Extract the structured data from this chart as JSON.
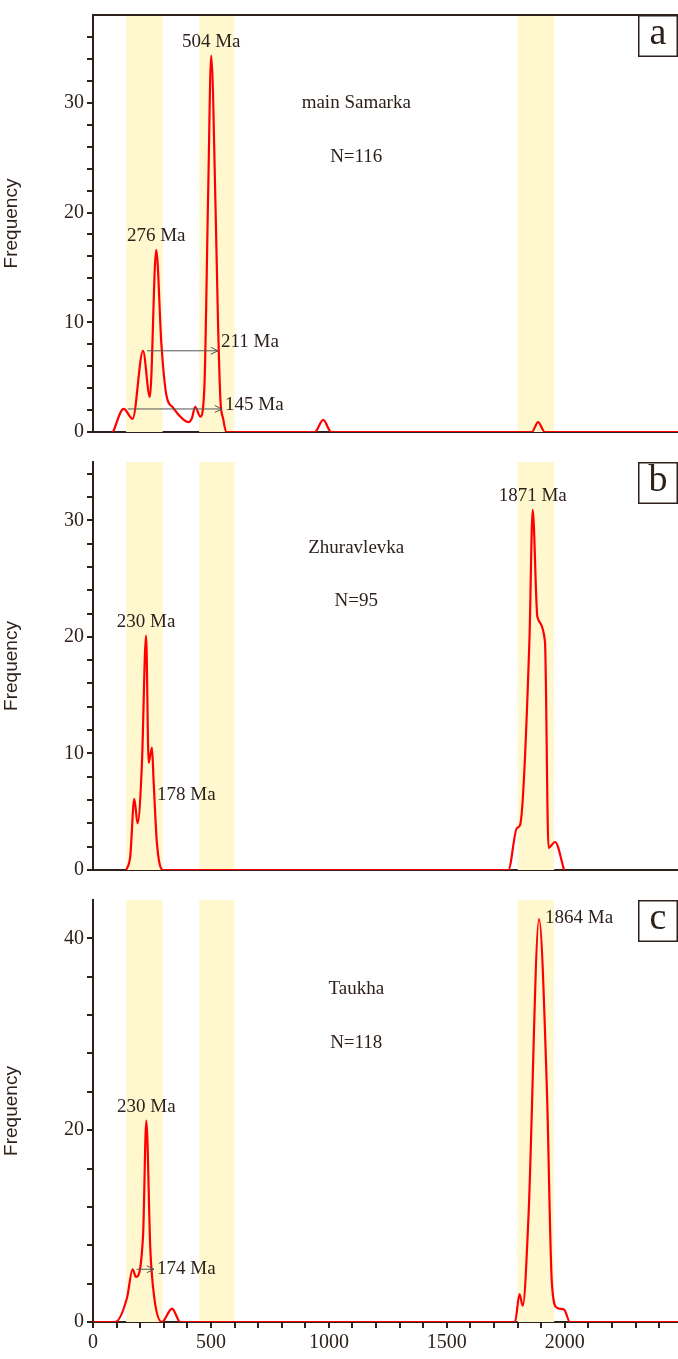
{
  "chart_data": [
    {
      "type": "line",
      "title": "main Samarka",
      "subtitle": "N=116",
      "ylabel": "Frequency",
      "tick_labels": "y",
      "x": [
        85,
        130,
        168,
        212,
        241,
        268,
        290,
        310,
        340,
        380,
        405,
        420,
        433,
        455,
        472,
        488,
        501,
        520,
        530,
        540,
        552,
        565,
        940,
        976,
        1010,
        1860,
        1887,
        1915,
        2480
      ],
      "values": [
        0,
        2.1,
        1.2,
        7.4,
        3.2,
        16.6,
        8,
        3.5,
        2.2,
        1.2,
        0.9,
        1.3,
        2.3,
        1.4,
        4,
        21.5,
        34.3,
        20,
        10,
        3,
        1.2,
        0,
        0,
        1.1,
        0,
        0,
        0.9,
        0,
        0
      ],
      "color": "#ff0000",
      "xlim": [
        0,
        2480
      ],
      "ylim": [
        0,
        38
      ],
      "yticks": [
        0,
        {
          "value": 2,
          "label": null
        },
        {
          "value": 4,
          "label": null
        },
        {
          "value": 6,
          "label": null
        },
        {
          "value": 8,
          "label": null
        },
        10,
        {
          "value": 12,
          "label": null
        },
        {
          "value": 14,
          "label": null
        },
        {
          "value": 16,
          "label": null
        },
        {
          "value": 18,
          "label": null
        },
        20,
        {
          "value": 22,
          "label": null
        },
        {
          "value": 24,
          "label": null
        },
        {
          "value": 26,
          "label": null
        },
        {
          "value": 28,
          "label": null
        },
        30,
        {
          "value": 32,
          "label": null
        },
        {
          "value": 34,
          "label": null
        },
        {
          "value": 36,
          "label": null
        }
      ],
      "bands": [
        {
          "axis": "x",
          "from": 140,
          "to": 295,
          "color": "#fff8cf"
        },
        {
          "axis": "x",
          "from": 450,
          "to": 600,
          "color": "#fff8cf"
        },
        {
          "axis": "x",
          "from": 1800,
          "to": 1955,
          "color": "#fff8cf"
        }
      ],
      "annotations": [
        {
          "text": "504 Ma",
          "x": 501,
          "y": 34.3
        },
        {
          "text": "276 Ma",
          "x": 268,
          "y": 16.6
        },
        {
          "text": "211 Ma",
          "x": 212,
          "y": 7.4
        },
        {
          "text": "145 Ma",
          "x": 130,
          "y": 2.1
        },
        "a"
      ]
    },
    {
      "type": "line",
      "title": "Zhuravlevka",
      "subtitle": "N=95",
      "ylabel": "Frequency",
      "tick_labels": "y",
      "x": [
        141,
        158,
        175,
        189,
        207,
        225,
        236,
        250,
        257,
        271,
        297,
        1761,
        1797,
        1811,
        1850,
        1864,
        1884,
        1916,
        1931,
        1959,
        1997
      ],
      "values": [
        0,
        1.2,
        6.1,
        4.0,
        8.9,
        20.1,
        9.2,
        10.5,
        7.6,
        2.3,
        0,
        0,
        3.6,
        3.9,
        19.6,
        30.9,
        21.7,
        19.6,
        1.9,
        2.4,
        0
      ],
      "color": "#ff0000",
      "xlim": [
        0,
        2480
      ],
      "ylim": [
        0,
        35
      ],
      "yticks": [
        0,
        {
          "value": 2,
          "label": null
        },
        {
          "value": 4,
          "label": null
        },
        {
          "value": 6,
          "label": null
        },
        {
          "value": 8,
          "label": null
        },
        10,
        {
          "value": 12,
          "label": null
        },
        {
          "value": 14,
          "label": null
        },
        {
          "value": 16,
          "label": null
        },
        {
          "value": 18,
          "label": null
        },
        20,
        {
          "value": 22,
          "label": null
        },
        {
          "value": 24,
          "label": null
        },
        {
          "value": 26,
          "label": null
        },
        {
          "value": 28,
          "label": null
        },
        30,
        {
          "value": 32,
          "label": null
        },
        {
          "value": 34,
          "label": null
        }
      ],
      "bands": [
        {
          "axis": "x",
          "from": 140,
          "to": 295,
          "color": "#fff8cf"
        },
        {
          "axis": "x",
          "from": 450,
          "to": 600,
          "color": "#fff8cf"
        },
        {
          "axis": "x",
          "from": 1800,
          "to": 1955,
          "color": "#fff8cf"
        }
      ],
      "annotations": [
        {
          "text": "1871 Ma",
          "x": 1864,
          "y": 30.9
        },
        {
          "text": "230 Ma",
          "x": 225,
          "y": 20.1
        },
        {
          "text": "178 Ma",
          "x": 175,
          "y": 6.1
        },
        "b"
      ]
    },
    {
      "type": "line",
      "title": "Taukha",
      "subtitle": "N=118",
      "ylabel": "Frequency",
      "x": [
        0,
        94,
        144,
        168,
        182,
        212,
        226,
        243,
        260,
        292,
        335,
        370,
        1789,
        1808,
        1822,
        1846,
        1891,
        1924,
        1945,
        1966,
        1997,
        2022,
        2480
      ],
      "values": [
        0,
        0,
        2.5,
        5.5,
        4.7,
        8.9,
        21.0,
        7.6,
        2.5,
        0,
        1.4,
        0,
        0,
        2.9,
        1.7,
        10.9,
        42.0,
        24.4,
        4.2,
        1.5,
        1.3,
        0,
        0
      ],
      "color": "#ff0000",
      "xlim": [
        0,
        2480
      ],
      "ylim": [
        0,
        44
      ],
      "xticks": [
        0,
        {
          "value": 100,
          "label": null
        },
        {
          "value": 200,
          "label": null
        },
        {
          "value": 300,
          "label": null
        },
        {
          "value": 400,
          "label": null
        },
        500,
        {
          "value": 600,
          "label": null
        },
        {
          "value": 700,
          "label": null
        },
        {
          "value": 800,
          "label": null
        },
        {
          "value": 900,
          "label": null
        },
        1000,
        {
          "value": 1100,
          "label": null
        },
        {
          "value": 1200,
          "label": null
        },
        {
          "value": 1300,
          "label": null
        },
        {
          "value": 1400,
          "label": null
        },
        1500,
        {
          "value": 1600,
          "label": null
        },
        {
          "value": 1700,
          "label": null
        },
        {
          "value": 1800,
          "label": null
        },
        {
          "value": 1900,
          "label": null
        },
        2000,
        {
          "value": 2100,
          "label": null
        },
        {
          "value": 2200,
          "label": null
        },
        {
          "value": 2300,
          "label": null
        },
        {
          "value": 2400,
          "label": null
        }
      ],
      "yticks": [
        0,
        {
          "value": 4,
          "label": null
        },
        {
          "value": 8,
          "label": null
        },
        {
          "value": 12,
          "label": null
        },
        {
          "value": 16,
          "label": null
        },
        20,
        {
          "value": 24,
          "label": null
        },
        {
          "value": 28,
          "label": null
        },
        {
          "value": 32,
          "label": null
        },
        {
          "value": 36,
          "label": null
        },
        40
      ],
      "bands": [
        {
          "axis": "x",
          "from": 140,
          "to": 295,
          "color": "#fff8cf"
        },
        {
          "axis": "x",
          "from": 450,
          "to": 600,
          "color": "#fff8cf"
        },
        {
          "axis": "x",
          "from": 1800,
          "to": 1955,
          "color": "#fff8cf"
        }
      ],
      "annotations": [
        {
          "text": "1864 Ma",
          "x": 1891,
          "y": 42.0
        },
        {
          "text": "230 Ma",
          "x": 226,
          "y": 21.0
        },
        {
          "text": "174 Ma",
          "x": 168,
          "y": 5.5
        },
        "c"
      ]
    }
  ]
}
